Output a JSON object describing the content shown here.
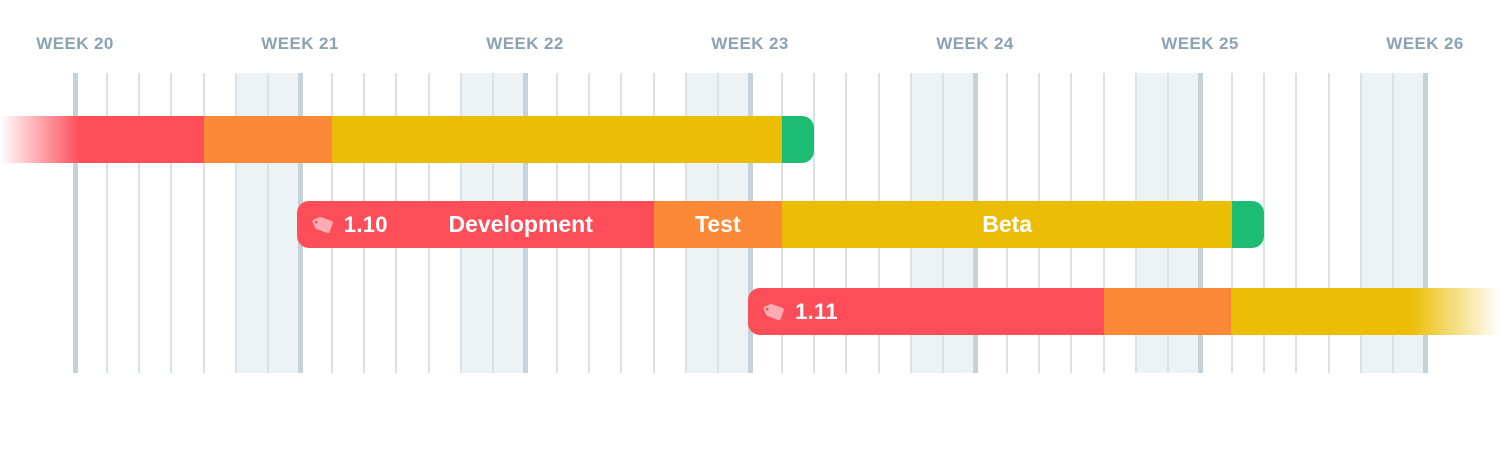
{
  "axis": {
    "week_labels": [
      "WEEK 20",
      "WEEK 21",
      "WEEK 22",
      "WEEK 23",
      "WEEK 24",
      "WEEK 25",
      "WEEK 26"
    ]
  },
  "colors": {
    "development": "#FC4D58",
    "test": "#FB8938",
    "beta": "#EBBD04",
    "release": "#1CBC72",
    "week_label": "#8BA2B3",
    "grid_thin": "#D9E2E8",
    "grid_thick": "#C6D2DA",
    "weekend_band": "#EDF2F5",
    "background": "#FFFFFF",
    "tag_icon": "rgba(255,255,255,0.55)"
  },
  "chart_data": {
    "type": "bar",
    "subtype": "gantt-release-timeline",
    "title": "",
    "x_unit": "days (day 0 = start line of WEEK 20, 7 days per week)",
    "x_tick_labels": [
      "WEEK 20",
      "WEEK 21",
      "WEEK 22",
      "WEEK 23",
      "WEEK 24",
      "WEEK 25",
      "WEEK 26"
    ],
    "x_range_days": [
      -2.33,
      44.33
    ],
    "grid": {
      "full_weeks_shown": 6,
      "gridlines": "daily",
      "weekend_shading": "last 2 days of each week shaded"
    },
    "phase_color_legend": {
      "Development": "red",
      "Test": "orange",
      "Beta": "yellow",
      "Release": "green"
    },
    "bars": [
      {
        "version": "",
        "row": 1,
        "continues_from_left": true,
        "segments": [
          {
            "phase": "Development",
            "label": "",
            "color_key": "development",
            "start_day": -2.33,
            "end_day": 4.0,
            "fade_in_days": 2.5
          },
          {
            "phase": "Test",
            "label": "",
            "color_key": "test",
            "start_day": 4.0,
            "end_day": 8.0
          },
          {
            "phase": "Beta",
            "label": "",
            "color_key": "beta",
            "start_day": 8.0,
            "end_day": 22.0
          },
          {
            "phase": "Release",
            "label": "",
            "color_key": "release",
            "start_day": 22.0,
            "end_day": 23.0,
            "cap": "right"
          }
        ]
      },
      {
        "version": "1.10",
        "row": 2,
        "segments": [
          {
            "phase": "Development",
            "label": "Development",
            "color_key": "development",
            "start_day": 6.9,
            "end_day": 18.0,
            "cap": "left",
            "show_version": true
          },
          {
            "phase": "Test",
            "label": "Test",
            "color_key": "test",
            "start_day": 18.0,
            "end_day": 22.0
          },
          {
            "phase": "Beta",
            "label": "Beta",
            "color_key": "beta",
            "start_day": 22.0,
            "end_day": 36.0
          },
          {
            "phase": "Release",
            "label": "",
            "color_key": "release",
            "start_day": 36.0,
            "end_day": 37.0,
            "cap": "right"
          }
        ]
      },
      {
        "version": "1.11",
        "row": 3,
        "continues_past_right": true,
        "segments": [
          {
            "phase": "Development",
            "label": "",
            "color_key": "development",
            "start_day": 20.94,
            "end_day": 32.0,
            "cap": "left",
            "show_version": true
          },
          {
            "phase": "Test",
            "label": "",
            "color_key": "test",
            "start_day": 32.0,
            "end_day": 35.95
          },
          {
            "phase": "Beta",
            "label": "",
            "color_key": "beta",
            "start_day": 35.95,
            "end_day": 44.33,
            "fade_out_days": 2.8
          }
        ]
      }
    ]
  }
}
